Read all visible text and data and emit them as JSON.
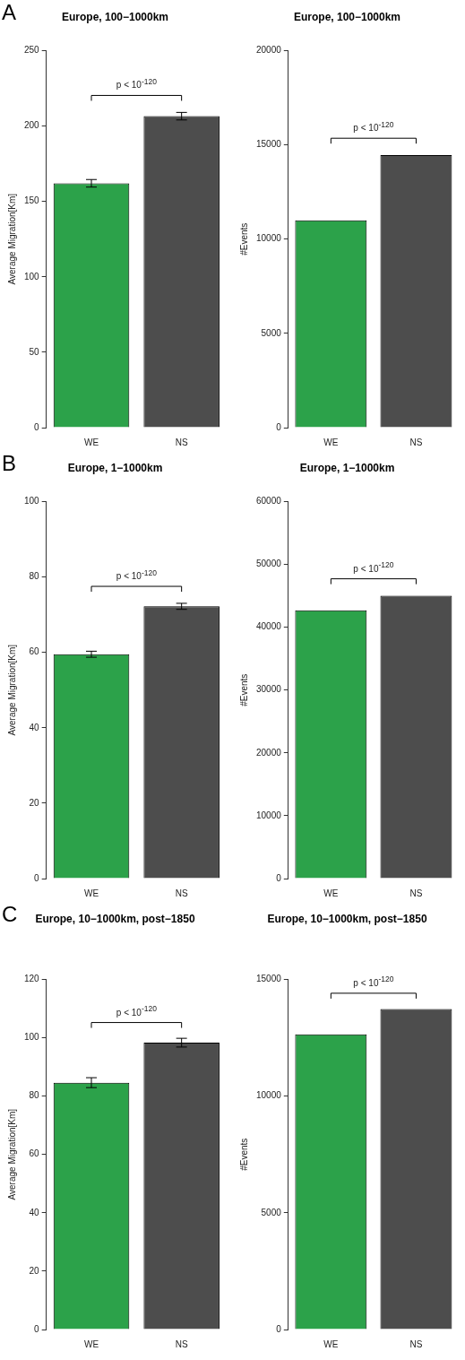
{
  "chart_data": [
    {
      "type": "bar",
      "title": "Europe, 100−1000km",
      "ylabel": "Average Migration[Km]",
      "categories": [
        "WE",
        "NS"
      ],
      "values": [
        162,
        206.5
      ],
      "colors": [
        "#2ca24a",
        "#4d4d4d"
      ],
      "errors": [
        2.5,
        2.5
      ],
      "ylim": [
        0,
        250
      ],
      "yticks": [
        0,
        50,
        100,
        150,
        200,
        250
      ],
      "annotations": [
        "A",
        "p < 10$^{-120}$"
      ]
    },
    {
      "type": "bar",
      "title": "Europe, 100−1000km",
      "ylabel": "#Events",
      "categories": [
        "WE",
        "NS"
      ],
      "values": [
        11000,
        14450
      ],
      "colors": [
        "#2ca24a",
        "#4d4d4d"
      ],
      "ylim": [
        0,
        20000
      ],
      "yticks": [
        0,
        5000,
        10000,
        15000,
        20000
      ],
      "annotations": [
        "p < 10$^{-120}$"
      ]
    },
    {
      "type": "bar",
      "title": "Europe, 1−1000km",
      "ylabel": "Average Migration[Km]",
      "categories": [
        "WE",
        "NS"
      ],
      "values": [
        59.5,
        72.2
      ],
      "colors": [
        "#2ca24a",
        "#4d4d4d"
      ],
      "errors": [
        0.8,
        0.8
      ],
      "ylim": [
        0,
        100
      ],
      "yticks": [
        0,
        20,
        40,
        60,
        80,
        100
      ],
      "annotations": [
        "B",
        "p < 10$^{-120}$"
      ]
    },
    {
      "type": "bar",
      "title": "Europe, 1−1000km",
      "ylabel": "#Events",
      "categories": [
        "WE",
        "NS"
      ],
      "values": [
        42700,
        45000
      ],
      "colors": [
        "#2ca24a",
        "#4d4d4d"
      ],
      "ylim": [
        0,
        60000
      ],
      "yticks": [
        0,
        10000,
        20000,
        30000,
        40000,
        50000,
        60000
      ],
      "annotations": [
        "p < 10$^{-120}$"
      ]
    },
    {
      "type": "bar",
      "title": "Europe, 10−1000km, post−1850",
      "ylabel": "Average Migration[Km]",
      "categories": [
        "WE",
        "NS"
      ],
      "values": [
        84.6,
        98.3
      ],
      "colors": [
        "#2ca24a",
        "#4d4d4d"
      ],
      "errors": [
        1.7,
        1.5
      ],
      "ylim": [
        0,
        120
      ],
      "yticks": [
        0,
        20,
        40,
        60,
        80,
        100,
        120
      ],
      "annotations": [
        "C",
        "p < 10$^{-120}$"
      ]
    },
    {
      "type": "bar",
      "title": "Europe, 10−1000km, post−1850",
      "ylabel": "#Events",
      "categories": [
        "WE",
        "NS"
      ],
      "values": [
        12640,
        13730
      ],
      "colors": [
        "#2ca24a",
        "#4d4d4d"
      ],
      "ylim": [
        0,
        15000
      ],
      "yticks": [
        0,
        5000,
        10000,
        15000
      ],
      "annotations": [
        "p < 10$^{-120}$"
      ]
    }
  ]
}
